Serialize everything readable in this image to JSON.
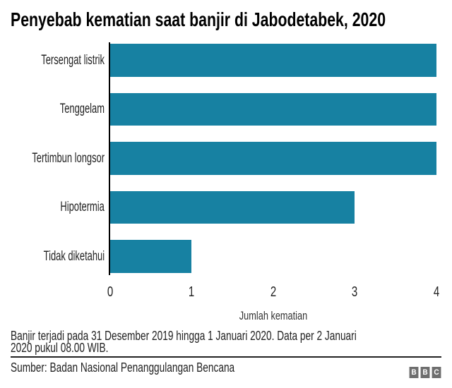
{
  "title": "Penyebab kematian saat banjir di Jabodetabek, 2020",
  "chart_data": {
    "type": "bar",
    "orientation": "horizontal",
    "title": "Penyebab kematian saat banjir di Jabodetabek, 2020",
    "categories": [
      "Tersengat listrik",
      "Tenggelam",
      "Tertimbun longsor",
      "Hipotermia",
      "Tidak diketahui"
    ],
    "values": [
      4,
      4,
      4,
      3,
      1
    ],
    "xlabel": "Jumlah kematian",
    "ylabel": "",
    "xticks": [
      0,
      1,
      2,
      3,
      4
    ],
    "xlim": [
      0,
      4
    ],
    "grid": false,
    "legend_position": "none"
  },
  "footnote": {
    "line1": "Banjir terjadi pada 31 Desember 2019 hingga 1 Januari 2020. Data per 2 Januari",
    "line2": "2020 pukul 08.00 WIB."
  },
  "source": "Sumber: Badan Nasional Penanggulangan Bencana",
  "logo": {
    "letters": [
      "B",
      "B",
      "C"
    ]
  },
  "colors": {
    "bar": "#1781A2",
    "axis": "#000000",
    "text": "#222222",
    "title": "#000000",
    "axis_label": "#333333",
    "logo_gray": "#6E6E6E",
    "background": "#FFFFFF"
  }
}
